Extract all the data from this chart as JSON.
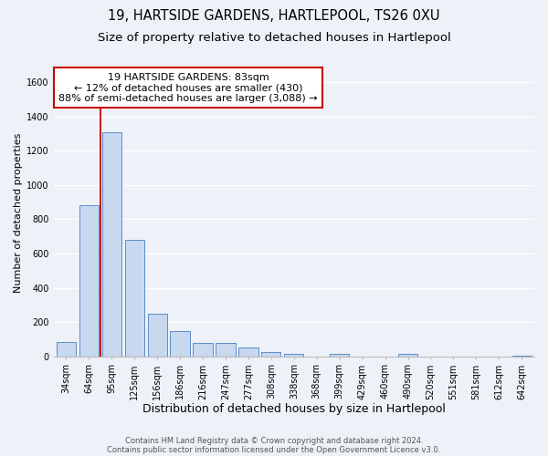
{
  "title": "19, HARTSIDE GARDENS, HARTLEPOOL, TS26 0XU",
  "subtitle": "Size of property relative to detached houses in Hartlepool",
  "xlabel": "Distribution of detached houses by size in Hartlepool",
  "ylabel": "Number of detached properties",
  "bar_color": "#c8d8ee",
  "bar_edge_color": "#5b8dc8",
  "categories": [
    "34sqm",
    "64sqm",
    "95sqm",
    "125sqm",
    "156sqm",
    "186sqm",
    "216sqm",
    "247sqm",
    "277sqm",
    "308sqm",
    "338sqm",
    "368sqm",
    "399sqm",
    "429sqm",
    "460sqm",
    "490sqm",
    "520sqm",
    "551sqm",
    "581sqm",
    "612sqm",
    "642sqm"
  ],
  "values": [
    85,
    880,
    1310,
    680,
    250,
    145,
    80,
    80,
    50,
    25,
    15,
    0,
    15,
    0,
    0,
    15,
    0,
    0,
    0,
    0,
    5
  ],
  "ylim": [
    0,
    1680
  ],
  "yticks": [
    0,
    200,
    400,
    600,
    800,
    1000,
    1200,
    1400,
    1600
  ],
  "vline_color": "#cc0000",
  "vline_x_index": 1.5,
  "annotation_lines": [
    "19 HARTSIDE GARDENS: 83sqm",
    "← 12% of detached houses are smaller (430)",
    "88% of semi-detached houses are larger (3,088) →"
  ],
  "footer1": "Contains HM Land Registry data © Crown copyright and database right 2024.",
  "footer2": "Contains public sector information licensed under the Open Government Licence v3.0.",
  "background_color": "#eef2f8",
  "grid_color": "#ffffff",
  "title_fontsize": 10.5,
  "subtitle_fontsize": 9.5,
  "xlabel_fontsize": 9,
  "ylabel_fontsize": 8,
  "tick_fontsize": 7,
  "annotation_fontsize": 8,
  "footer_fontsize": 6
}
